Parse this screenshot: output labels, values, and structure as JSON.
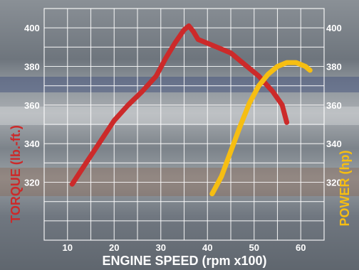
{
  "chart_data": {
    "type": "line",
    "xlabel": "ENGINE SPEED (rpm x100)",
    "xticks": [
      10,
      20,
      30,
      40,
      50,
      60
    ],
    "xlim": [
      5,
      65
    ],
    "y_left": {
      "label": "TORQUE (lb.-ft.)",
      "ticks": [
        320,
        340,
        360,
        380,
        400
      ],
      "range": [
        290,
        410
      ]
    },
    "y_right": {
      "label": "POWER (hp)",
      "ticks": [
        320,
        340,
        360,
        380,
        400
      ],
      "range": [
        290,
        410
      ]
    },
    "grid": true,
    "series": [
      {
        "axis": "left",
        "color": "#cc2a2a",
        "x": [
          11,
          14,
          17,
          20,
          23,
          26,
          29,
          31,
          33,
          35,
          36,
          37,
          38,
          40,
          42,
          45,
          48,
          51,
          54,
          56,
          57
        ],
        "y": [
          319,
          330,
          341,
          352,
          360,
          367,
          375,
          384,
          392,
          399,
          401,
          398,
          394,
          392,
          390,
          387,
          381,
          375,
          367,
          360,
          351
        ]
      },
      {
        "axis": "right",
        "color": "#f6be12",
        "x": [
          41,
          43,
          45,
          47,
          49,
          51,
          53,
          55,
          57,
          59,
          61,
          62
        ],
        "y": [
          314,
          323,
          336,
          349,
          361,
          370,
          376,
          380,
          382,
          382,
          380,
          378
        ]
      }
    ]
  },
  "colors": {
    "torque": "#cc2a2a",
    "power": "#f6be12",
    "grid": "#ffffff",
    "text": "#ffffff"
  }
}
